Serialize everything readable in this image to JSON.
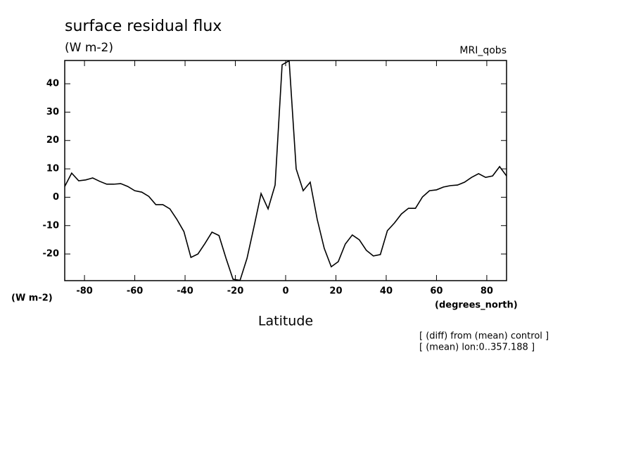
{
  "chart_data": {
    "type": "line",
    "title": "surface residual flux",
    "subtitle": "(W m-2)",
    "model_label": "MRI_qobs",
    "y_units": "(W m-2)",
    "x_units": "(degrees_north)",
    "xlabel": "Latitude",
    "annotations": [
      "[ (diff) from (mean) control ]",
      "[ (mean) lon:0..357.188 ]"
    ],
    "x": [
      -87.86,
      -85.1,
      -82.31,
      -79.53,
      -76.74,
      -73.95,
      -71.16,
      -68.37,
      -65.58,
      -62.79,
      -60.0,
      -57.21,
      -54.42,
      -51.63,
      -48.84,
      -46.04,
      -43.25,
      -40.46,
      -37.67,
      -34.88,
      -32.09,
      -29.3,
      -26.51,
      -23.72,
      -20.93,
      -18.14,
      -15.35,
      -12.56,
      -9.77,
      -6.98,
      -4.19,
      -1.4,
      1.4,
      4.19,
      6.98,
      9.77,
      12.56,
      15.35,
      18.14,
      20.93,
      23.72,
      26.51,
      29.3,
      32.09,
      34.88,
      37.67,
      40.46,
      43.25,
      46.04,
      48.84,
      51.63,
      54.42,
      57.21,
      60.0,
      62.79,
      65.58,
      68.37,
      71.16,
      73.95,
      76.74,
      79.53,
      82.31,
      85.1,
      87.86
    ],
    "series": [
      {
        "name": "MRI_qobs",
        "color": "#000000",
        "values": [
          3.8,
          8.5,
          5.8,
          6.1,
          6.8,
          5.6,
          4.6,
          4.6,
          4.8,
          3.8,
          2.3,
          1.8,
          0.3,
          -2.6,
          -2.6,
          -4.1,
          -7.8,
          -12.1,
          -21.2,
          -20.0,
          -16.3,
          -12.3,
          -13.5,
          -21.5,
          -28.9,
          -29.3,
          -21.5,
          -10.3,
          1.3,
          -4.1,
          4.3,
          46.7,
          48.1,
          10.0,
          2.3,
          5.3,
          -7.8,
          -18.0,
          -24.5,
          -22.7,
          -16.5,
          -13.3,
          -15.0,
          -18.7,
          -20.7,
          -20.2,
          -11.8,
          -9.1,
          -5.9,
          -3.9,
          -3.9,
          0.1,
          2.3,
          2.6,
          3.6,
          4.1,
          4.3,
          5.3,
          7.0,
          8.3,
          7.0,
          7.5,
          10.8,
          7.5
        ]
      }
    ],
    "xlim": [
      -87.86,
      87.86
    ],
    "ylim": [
      -29.4,
      48.2
    ],
    "xticks": [
      -80,
      -60,
      -40,
      -20,
      0,
      20,
      40,
      60,
      80
    ],
    "yticks": [
      -20,
      -10,
      0,
      10,
      20,
      30,
      40
    ]
  }
}
